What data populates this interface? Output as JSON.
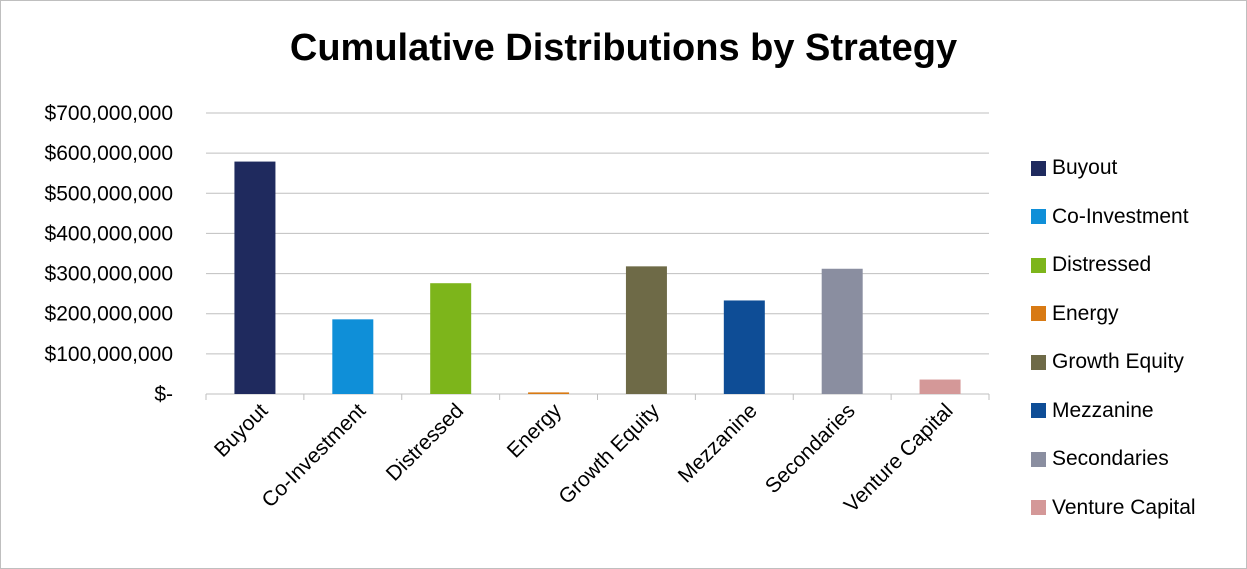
{
  "chart_data": {
    "type": "bar",
    "title": "Cumulative Distributions by Strategy",
    "xlabel": "",
    "ylabel": "",
    "categories": [
      "Buyout",
      "Co-Investment",
      "Distressed",
      "Energy",
      "Growth Equity",
      "Mezzanine",
      "Secondaries",
      "Venture Capital"
    ],
    "values": [
      579000000,
      186000000,
      276000000,
      4000000,
      318000000,
      233000000,
      312000000,
      36000000
    ],
    "colors": [
      "#1f2a5e",
      "#0f8fd8",
      "#7db51b",
      "#d87a14",
      "#6e6a47",
      "#0e4d96",
      "#8a8ea0",
      "#d49898"
    ],
    "ylim": [
      0,
      700000000
    ],
    "yticks": [
      0,
      100000000,
      200000000,
      300000000,
      400000000,
      500000000,
      600000000,
      700000000
    ],
    "ytick_labels": [
      "$-",
      "$100,000,000",
      "$200,000,000",
      "$300,000,000",
      "$400,000,000",
      "$500,000,000",
      "$600,000,000",
      "$700,000,000"
    ],
    "grid": true,
    "legend_position": "right"
  }
}
